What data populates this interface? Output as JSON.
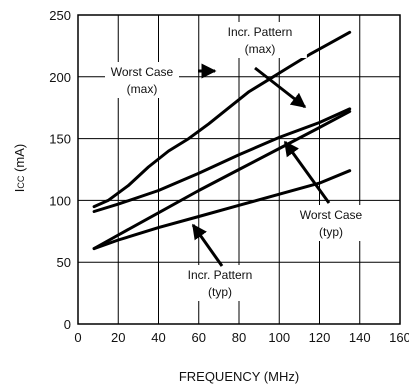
{
  "chart_data": {
    "type": "line",
    "xlabel": "FREQUENCY (MHz)",
    "ylabel_main": "I",
    "ylabel_sub": "CC",
    "ylabel_unit": " (mA)",
    "xlim": [
      0,
      160
    ],
    "ylim": [
      0,
      250
    ],
    "xticks": [
      0,
      20,
      40,
      60,
      80,
      100,
      120,
      140,
      160
    ],
    "yticks": [
      0,
      50,
      100,
      150,
      200,
      250
    ],
    "grid": true,
    "series": [
      {
        "name": "Worst Case (max)",
        "x": [
          8,
          15,
          25,
          35,
          45,
          55,
          65,
          75,
          85,
          95,
          105,
          115,
          125,
          135
        ],
        "y": [
          95,
          100,
          112,
          127,
          140,
          150,
          162,
          175,
          188,
          198,
          208,
          218,
          227,
          236
        ]
      },
      {
        "name": "Incr. Pattern (max)",
        "x": [
          8,
          20,
          40,
          60,
          80,
          100,
          120,
          135
        ],
        "y": [
          91,
          97,
          108,
          122,
          137,
          151,
          163,
          174
        ]
      },
      {
        "name": "Worst Case (typ)",
        "x": [
          8,
          20,
          40,
          60,
          80,
          100,
          120,
          135
        ],
        "y": [
          61,
          72,
          90,
          108,
          125,
          142,
          159,
          172
        ]
      },
      {
        "name": "Incr. Pattern (typ)",
        "x": [
          8,
          20,
          40,
          60,
          80,
          100,
          120,
          135
        ],
        "y": [
          61,
          68,
          78,
          87,
          96,
          105,
          114,
          124
        ]
      }
    ],
    "annotations": [
      {
        "line1": "Incr. Pattern",
        "line2": "(max)"
      },
      {
        "line1": "Worst Case",
        "line2": "(max)"
      },
      {
        "line1": "Worst Case",
        "line2": "(typ)"
      },
      {
        "line1": "Incr. Pattern",
        "line2": "(typ)"
      }
    ]
  }
}
